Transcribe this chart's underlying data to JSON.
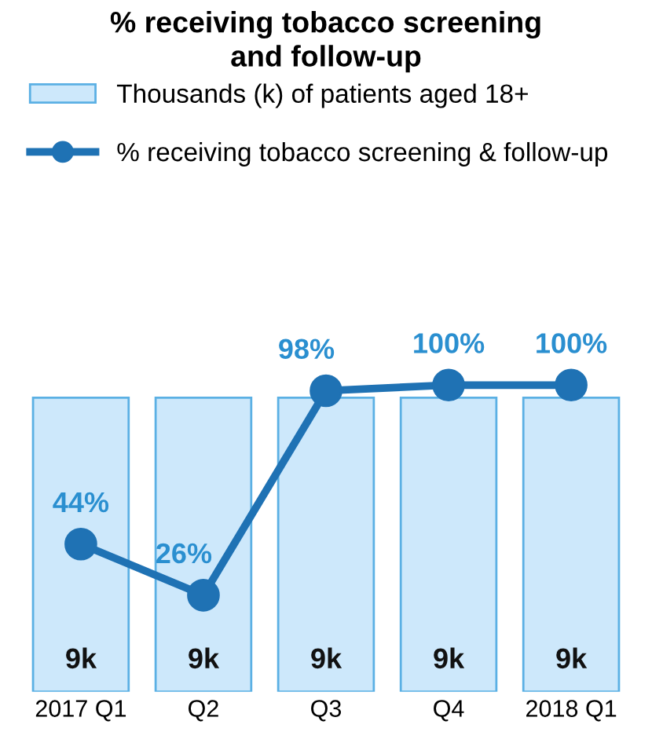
{
  "chart_data": {
    "type": "bar",
    "title": "% receiving tobacco screening\nand follow-up",
    "categories": [
      "2017 Q1",
      "Q2",
      "Q3",
      "Q4",
      "2018 Q1"
    ],
    "series": [
      {
        "name": "Thousands (k) of patients aged 18+",
        "color": "#cde8fb",
        "values": [
          9,
          9,
          9,
          9,
          9
        ],
        "value_labels": [
          "9k",
          "9k",
          "9k",
          "9k",
          "9k"
        ]
      },
      {
        "name": "% receiving tobacco screening & follow-up",
        "type": "line",
        "axis": "y2",
        "color": "#1f72b4",
        "values": [
          44,
          26,
          98,
          100,
          100
        ],
        "value_labels": [
          "44%",
          "26%",
          "98%",
          "100%",
          "100%"
        ]
      }
    ],
    "marker": "circle",
    "line_style": "solid",
    "legend": "top",
    "grid": false,
    "tick_labels": "x"
  }
}
